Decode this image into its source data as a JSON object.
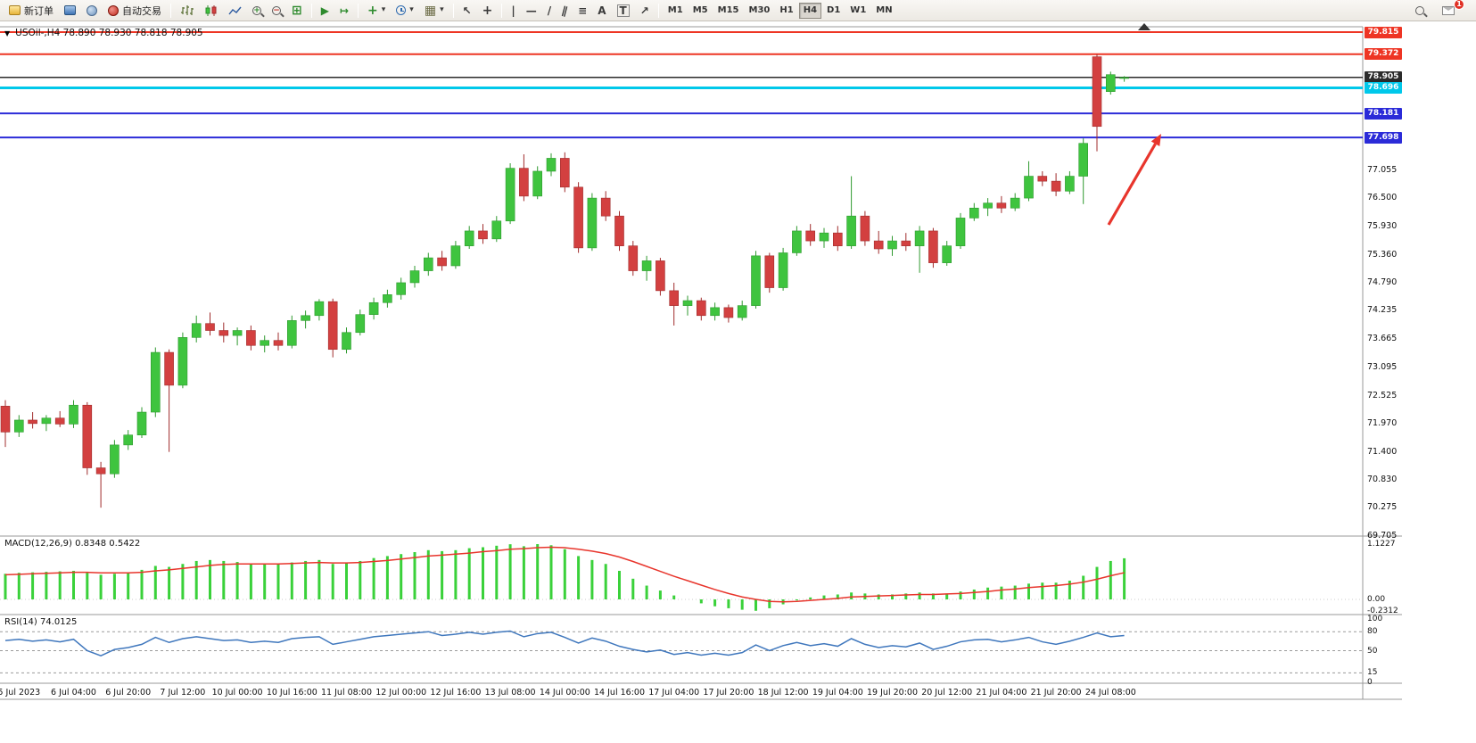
{
  "colors": {
    "up": "#3fc43f",
    "up_stroke": "#2f9a2f",
    "down": "#d34040",
    "down_stroke": "#a02c2c",
    "macd_bar": "#3ad13a",
    "macd_signal": "#e8352c",
    "rsi_line": "#3f77bd",
    "level_red": "#ee3524",
    "level_blue": "#2b2bd8",
    "level_cyan": "#00c8ea",
    "current_price": "#2b2b2b",
    "arrow": "#e8352c",
    "axis_text": "#111111"
  },
  "toolbar": {
    "new_order": "新订单",
    "autotrading": "自动交易",
    "timeframes": [
      "M1",
      "M5",
      "M15",
      "M30",
      "H1",
      "H4",
      "D1",
      "W1",
      "MN"
    ],
    "active_timeframe": "H4",
    "badge_count": "1"
  },
  "icons": {
    "chart_menu": "▼",
    "dropdown": "▾",
    "shift_marker": "▲",
    "auto_scroll": "▶",
    "chart_shift": "↦",
    "indicators_plus": "+",
    "tile_windows": "⊞",
    "templates": "▦",
    "cursor": "↖",
    "crosshair": "+",
    "vertical_line": "|",
    "horizontal_line": "—",
    "trendline": "/",
    "channel": "∥",
    "fibonacci": "≡",
    "text_tool": "A",
    "label_tool": "T",
    "arrows_tool": "↗",
    "zoom_in": "+",
    "zoom_out": "−"
  },
  "chart_header": {
    "title": "USOil-,H4  78.890 78.930 78.818 78.905"
  },
  "chart_data": {
    "type": "candlestick",
    "symbol": "USOil-",
    "timeframe": "H4",
    "current_ohlc": {
      "open": "78.890",
      "high": "78.930",
      "low": "78.818",
      "close": "78.905"
    },
    "y_range": [
      69.705,
      79.815
    ],
    "candles": [
      [
        72.3,
        72.42,
        71.48,
        71.78
      ],
      [
        71.78,
        72.12,
        71.68,
        72.02
      ],
      [
        72.02,
        72.18,
        71.85,
        71.95
      ],
      [
        71.95,
        72.12,
        71.8,
        72.06
      ],
      [
        72.06,
        72.2,
        71.88,
        71.94
      ],
      [
        71.94,
        72.42,
        71.86,
        72.32
      ],
      [
        72.32,
        72.38,
        70.92,
        71.06
      ],
      [
        71.06,
        71.18,
        70.26,
        70.94
      ],
      [
        70.94,
        71.62,
        70.86,
        71.52
      ],
      [
        71.52,
        71.82,
        71.42,
        71.72
      ],
      [
        71.72,
        72.28,
        71.66,
        72.18
      ],
      [
        72.18,
        73.48,
        72.08,
        73.38
      ],
      [
        73.38,
        73.44,
        71.38,
        72.72
      ],
      [
        72.72,
        73.78,
        72.66,
        73.68
      ],
      [
        73.68,
        74.12,
        73.58,
        73.96
      ],
      [
        73.96,
        74.18,
        73.72,
        73.82
      ],
      [
        73.82,
        73.98,
        73.58,
        73.72
      ],
      [
        73.72,
        73.88,
        73.52,
        73.82
      ],
      [
        73.82,
        73.92,
        73.42,
        73.52
      ],
      [
        73.52,
        73.72,
        73.38,
        73.62
      ],
      [
        73.62,
        73.78,
        73.42,
        73.52
      ],
      [
        73.52,
        74.12,
        73.46,
        74.02
      ],
      [
        74.02,
        74.22,
        73.86,
        74.12
      ],
      [
        74.12,
        74.45,
        74.02,
        74.4
      ],
      [
        74.4,
        74.46,
        73.28,
        73.44
      ],
      [
        73.44,
        73.88,
        73.36,
        73.78
      ],
      [
        73.78,
        74.24,
        73.72,
        74.14
      ],
      [
        74.14,
        74.48,
        74.04,
        74.38
      ],
      [
        74.38,
        74.64,
        74.28,
        74.54
      ],
      [
        74.54,
        74.88,
        74.44,
        74.78
      ],
      [
        74.78,
        75.12,
        74.68,
        75.02
      ],
      [
        75.02,
        75.38,
        74.92,
        75.28
      ],
      [
        75.28,
        75.42,
        75.02,
        75.12
      ],
      [
        75.12,
        75.62,
        75.06,
        75.52
      ],
      [
        75.52,
        75.92,
        75.46,
        75.82
      ],
      [
        75.82,
        75.96,
        75.56,
        75.66
      ],
      [
        75.66,
        76.12,
        75.6,
        76.02
      ],
      [
        76.02,
        77.18,
        75.96,
        77.08
      ],
      [
        77.08,
        77.36,
        76.42,
        76.52
      ],
      [
        76.52,
        77.12,
        76.46,
        77.02
      ],
      [
        77.02,
        77.38,
        76.92,
        77.28
      ],
      [
        77.28,
        77.4,
        76.6,
        76.7
      ],
      [
        76.7,
        76.8,
        75.38,
        75.48
      ],
      [
        75.48,
        76.58,
        75.42,
        76.48
      ],
      [
        76.48,
        76.62,
        76.02,
        76.12
      ],
      [
        76.12,
        76.22,
        75.42,
        75.52
      ],
      [
        75.52,
        75.62,
        74.92,
        75.02
      ],
      [
        75.02,
        75.32,
        74.82,
        75.22
      ],
      [
        75.22,
        75.28,
        74.52,
        74.62
      ],
      [
        74.62,
        74.78,
        73.92,
        74.32
      ],
      [
        74.32,
        74.52,
        74.12,
        74.42
      ],
      [
        74.42,
        74.48,
        74.02,
        74.12
      ],
      [
        74.12,
        74.38,
        74.02,
        74.28
      ],
      [
        74.28,
        74.34,
        73.98,
        74.08
      ],
      [
        74.08,
        74.42,
        74.02,
        74.32
      ],
      [
        74.32,
        75.42,
        74.26,
        75.32
      ],
      [
        75.32,
        75.38,
        74.58,
        74.68
      ],
      [
        74.68,
        75.48,
        74.62,
        75.38
      ],
      [
        75.38,
        75.92,
        75.32,
        75.82
      ],
      [
        75.82,
        75.96,
        75.52,
        75.62
      ],
      [
        75.62,
        75.88,
        75.48,
        75.78
      ],
      [
        75.78,
        75.92,
        75.42,
        75.52
      ],
      [
        75.52,
        76.92,
        75.46,
        76.12
      ],
      [
        76.12,
        76.22,
        75.52,
        75.62
      ],
      [
        75.62,
        75.82,
        75.36,
        75.46
      ],
      [
        75.46,
        75.72,
        75.32,
        75.62
      ],
      [
        75.62,
        75.78,
        75.42,
        75.52
      ],
      [
        75.52,
        75.92,
        74.98,
        75.82
      ],
      [
        75.82,
        75.88,
        75.08,
        75.18
      ],
      [
        75.18,
        75.62,
        75.12,
        75.52
      ],
      [
        75.52,
        76.18,
        75.46,
        76.08
      ],
      [
        76.08,
        76.38,
        76.02,
        76.28
      ],
      [
        76.28,
        76.48,
        76.12,
        76.38
      ],
      [
        76.38,
        76.52,
        76.18,
        76.28
      ],
      [
        76.28,
        76.58,
        76.22,
        76.48
      ],
      [
        76.48,
        77.22,
        76.42,
        76.92
      ],
      [
        76.92,
        77.02,
        76.72,
        76.82
      ],
      [
        76.82,
        76.98,
        76.52,
        76.62
      ],
      [
        76.62,
        77.02,
        76.56,
        76.92
      ],
      [
        76.92,
        77.68,
        76.36,
        77.58
      ],
      [
        79.32,
        79.372,
        77.42,
        77.92
      ],
      [
        78.62,
        79.02,
        78.56,
        78.96
      ],
      [
        78.89,
        78.93,
        78.818,
        78.905
      ]
    ],
    "time_labels": [
      "5 Jul 2023",
      "6 Jul 04:00",
      "6 Jul 20:00",
      "7 Jul 12:00",
      "10 Jul 00:00",
      "10 Jul 16:00",
      "11 Jul 08:00",
      "12 Jul 00:00",
      "12 Jul 16:00",
      "13 Jul 08:00",
      "14 Jul 00:00",
      "14 Jul 16:00",
      "17 Jul 04:00",
      "17 Jul 20:00",
      "18 Jul 12:00",
      "19 Jul 04:00",
      "19 Jul 20:00",
      "20 Jul 12:00",
      "21 Jul 04:00",
      "21 Jul 20:00",
      "24 Jul 08:00"
    ],
    "x_label_start_index": 1,
    "x_label_step": 4,
    "price_axis_ticks": [
      77.055,
      76.5,
      75.93,
      75.36,
      74.79,
      74.235,
      73.665,
      73.095,
      72.525,
      71.97,
      71.4,
      70.83,
      70.275,
      69.705
    ],
    "levels": [
      {
        "value": 79.815,
        "label": "79.815",
        "color": "#ee3524",
        "line_width": 2,
        "kind": "resistance"
      },
      {
        "value": 79.372,
        "label": "79.372",
        "color": "#ee3524",
        "line_width": 2,
        "kind": "resistance"
      },
      {
        "value": 78.905,
        "label": "78.905",
        "color": "#2b2b2b",
        "line_width": 1.5,
        "kind": "current-price"
      },
      {
        "value": 78.696,
        "label": "78.696",
        "color": "#00c8ea",
        "line_width": 3,
        "kind": "level"
      },
      {
        "value": 78.181,
        "label": "78.181",
        "color": "#2b2bd8",
        "line_width": 2,
        "kind": "support"
      },
      {
        "value": 77.698,
        "label": "77.698",
        "color": "#2b2bd8",
        "line_width": 2,
        "kind": "support"
      }
    ],
    "macd": {
      "label": "MACD(12,26,9) 0.8348 0.5422",
      "histogram": [
        0.52,
        0.54,
        0.55,
        0.56,
        0.57,
        0.58,
        0.55,
        0.5,
        0.52,
        0.55,
        0.6,
        0.68,
        0.66,
        0.72,
        0.78,
        0.8,
        0.78,
        0.76,
        0.73,
        0.72,
        0.72,
        0.75,
        0.78,
        0.8,
        0.72,
        0.74,
        0.78,
        0.84,
        0.88,
        0.92,
        0.96,
        1.0,
        0.98,
        1.0,
        1.04,
        1.06,
        1.09,
        1.12,
        1.08,
        1.1227,
        1.1,
        1.02,
        0.88,
        0.8,
        0.72,
        0.58,
        0.42,
        0.28,
        0.18,
        0.08,
        0.0,
        -0.08,
        -0.14,
        -0.18,
        -0.21,
        -0.2312,
        -0.18,
        -0.1,
        -0.02,
        0.04,
        0.08,
        0.1,
        0.14,
        0.12,
        0.1,
        0.1,
        0.12,
        0.14,
        0.12,
        0.12,
        0.16,
        0.2,
        0.24,
        0.26,
        0.28,
        0.32,
        0.34,
        0.34,
        0.38,
        0.48,
        0.66,
        0.78,
        0.8348
      ],
      "signal": [
        0.5,
        0.51,
        0.52,
        0.53,
        0.54,
        0.55,
        0.55,
        0.54,
        0.54,
        0.54,
        0.55,
        0.58,
        0.6,
        0.63,
        0.66,
        0.69,
        0.71,
        0.72,
        0.72,
        0.72,
        0.72,
        0.73,
        0.74,
        0.75,
        0.74,
        0.74,
        0.75,
        0.77,
        0.79,
        0.82,
        0.85,
        0.88,
        0.9,
        0.92,
        0.94,
        0.97,
        0.99,
        1.02,
        1.03,
        1.05,
        1.06,
        1.05,
        1.02,
        0.98,
        0.93,
        0.86,
        0.77,
        0.67,
        0.57,
        0.47,
        0.38,
        0.29,
        0.2,
        0.12,
        0.05,
        0.0,
        -0.04,
        -0.05,
        -0.04,
        -0.02,
        0.0,
        0.02,
        0.05,
        0.06,
        0.07,
        0.08,
        0.09,
        0.1,
        0.1,
        0.11,
        0.12,
        0.14,
        0.16,
        0.19,
        0.21,
        0.24,
        0.26,
        0.28,
        0.31,
        0.35,
        0.41,
        0.48,
        0.5422
      ],
      "scale": [
        {
          "v": 1.1227,
          "t": "1.1227"
        },
        {
          "v": 0,
          "t": "0.00"
        },
        {
          "v": -0.2312,
          "t": "-0.2312"
        }
      ]
    },
    "rsi": {
      "label": "RSI(14) 74.0125",
      "values": [
        66,
        68,
        65,
        67,
        64,
        68,
        50,
        42,
        52,
        55,
        60,
        71,
        63,
        69,
        72,
        69,
        66,
        67,
        63,
        65,
        63,
        69,
        71,
        72,
        60,
        64,
        68,
        72,
        74,
        76,
        78,
        80,
        74,
        76,
        79,
        76,
        79,
        81,
        72,
        77,
        79,
        71,
        62,
        70,
        65,
        57,
        52,
        48,
        51,
        44,
        47,
        43,
        46,
        43,
        47,
        59,
        50,
        58,
        63,
        58,
        61,
        57,
        69,
        60,
        55,
        58,
        56,
        62,
        52,
        57,
        64,
        67,
        68,
        64,
        67,
        71,
        64,
        60,
        65,
        71,
        78,
        72,
        74.0125
      ],
      "levels": [
        80,
        50,
        15
      ],
      "scale": [
        {
          "v": 100,
          "t": "100"
        },
        {
          "v": 80,
          "t": "80"
        },
        {
          "v": 50,
          "t": "50"
        },
        {
          "v": 15,
          "t": "15"
        },
        {
          "v": 0,
          "t": "0"
        }
      ]
    },
    "annotation_arrow": {
      "from": [
        1243,
        252
      ],
      "to": [
        1302,
        150
      ],
      "color": "#e8352c"
    }
  }
}
